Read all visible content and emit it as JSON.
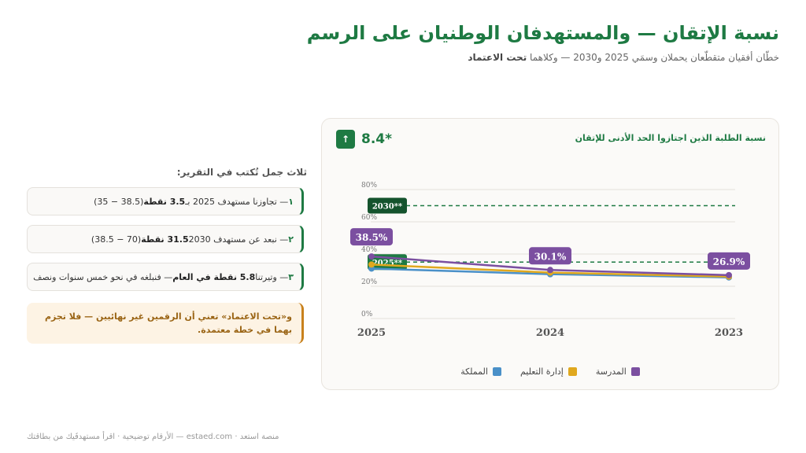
{
  "header": {
    "title": "نسبة الإتقان — والمستهدفان الوطنيان على الرسم",
    "subtitle_text": "خطّان أفقيان متقطّعان يحملان وسمَي 2025 و2030 — وكلاهما",
    "subtitle_bold": "تحت الاعتماد"
  },
  "panel": {
    "title": "نسبة الطلبة الذين اجتازوا الحد الأدنى للإتقان",
    "delta_value": "8.4*",
    "delta_arrow": "↑"
  },
  "chart_data": {
    "type": "line",
    "categories": [
      "2025",
      "2024",
      "2023"
    ],
    "series": [
      {
        "name": "المدرسة",
        "color": "#7b4fa0",
        "values": [
          38.5,
          30.1,
          26.9
        ]
      },
      {
        "name": "إدارة التعليم",
        "color": "#e0a81e",
        "values": [
          33.5,
          28.5,
          26.0
        ]
      },
      {
        "name": "المملكة",
        "color": "#4a90c8",
        "values": [
          31.0,
          27.5,
          25.5
        ]
      }
    ],
    "data_labels": [
      "38.5%",
      "30.1%",
      "26.9%"
    ],
    "targets": [
      {
        "label": "2030**",
        "value": 70
      },
      {
        "label": "2025**",
        "value": 35
      }
    ],
    "y_ticks": [
      "0%",
      "20%",
      "40%",
      "60%",
      "80%"
    ],
    "ylim": [
      0,
      80
    ]
  },
  "sidebar": {
    "heading": "ثلاث جمل تُكتب في التقرير:",
    "cards": [
      {
        "num": "١",
        "text": " — تجاوزنا مستهدف 2025 بـ",
        "bold": "3.5 نقطة",
        "tail": " (38.5 − 35)"
      },
      {
        "num": "٢",
        "text": " — نبعد عن مستهدف 2030 ",
        "bold": "31.5 نقطة",
        "tail": " (70 − 38.5)"
      },
      {
        "num": "٣",
        "text": " — وتيرتنا ",
        "bold": "5.8 نقطة في العام",
        "tail": " — فنبلغه في نحو خمس سنوات ونصف"
      }
    ],
    "note": "و«تحت الاعتماد» تعني أن الرقمين غير نهائيين — فلا تجزم بهما في خطة معتمدة."
  },
  "footer": "منصة استعد · estaed.com — الأرقام توضيحية · اقرأ مستهدفَيك من بطاقتك"
}
